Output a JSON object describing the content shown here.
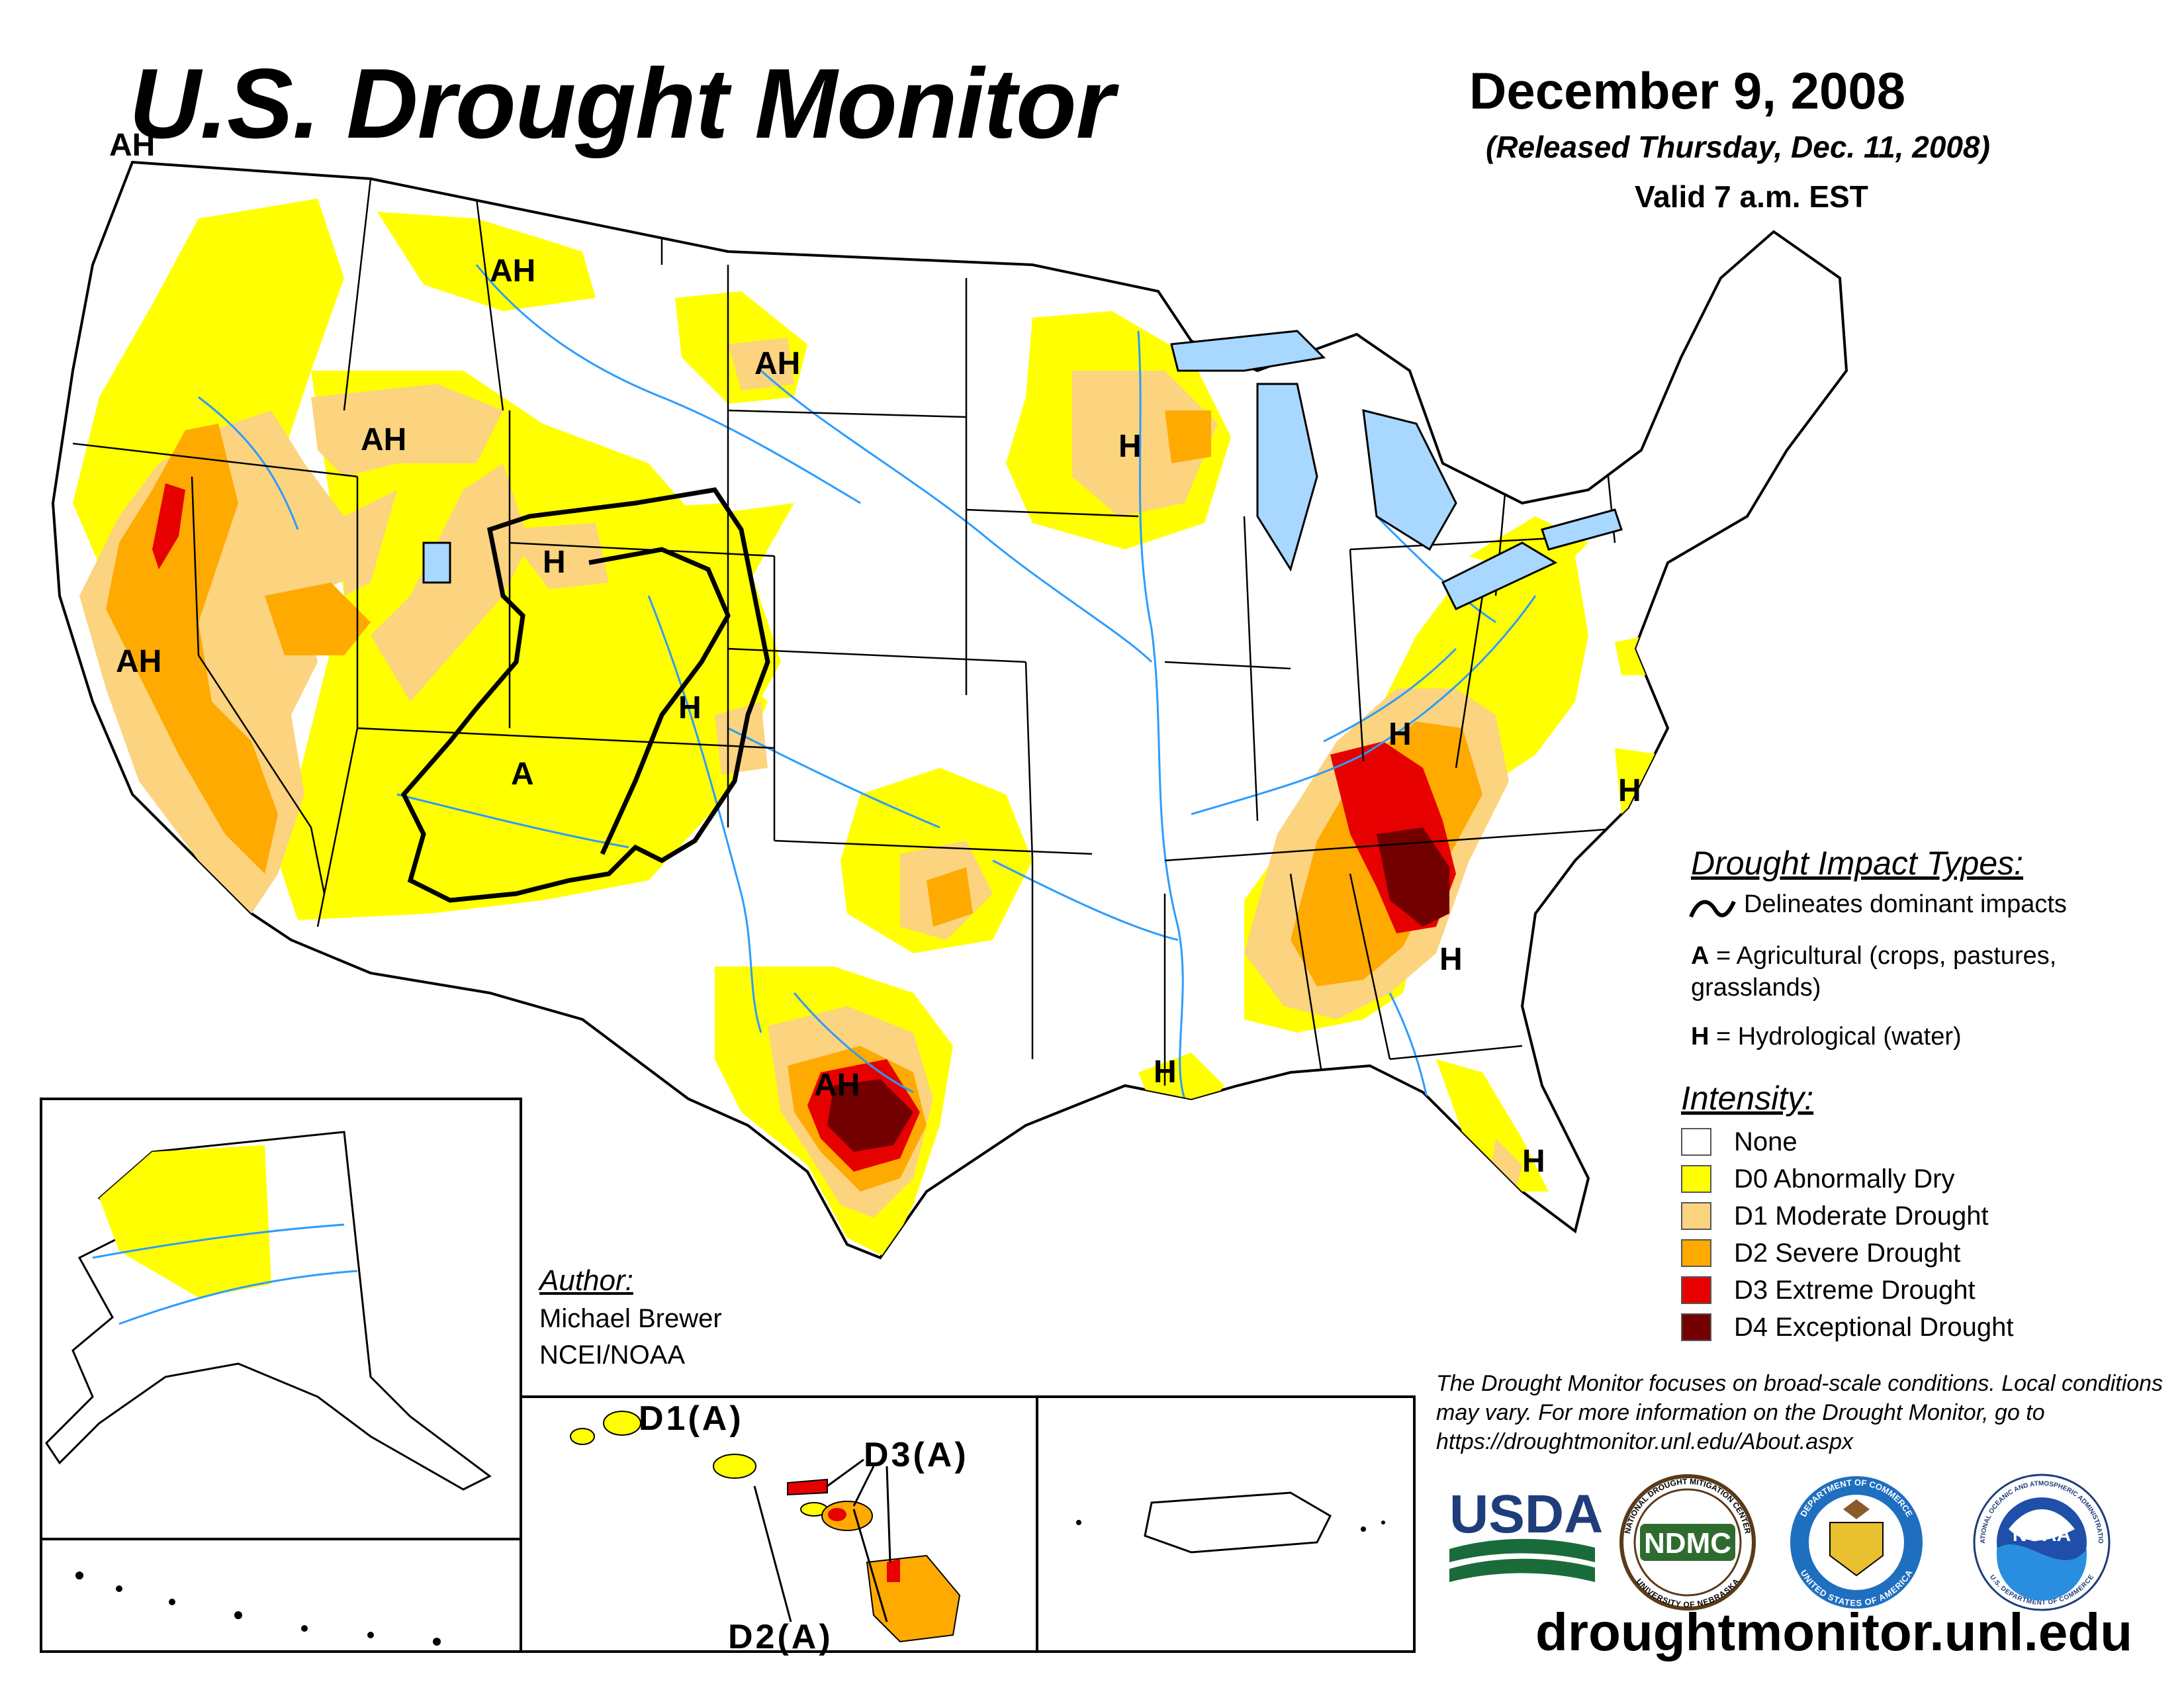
{
  "header": {
    "title": "U.S. Drought Monitor",
    "date": "December 9, 2008",
    "released": "(Released Thursday, Dec. 11, 2008)",
    "valid": "Valid 7 a.m. EST"
  },
  "colors": {
    "none": "#ffffff",
    "d0": "#ffff00",
    "d1": "#fcd37f",
    "d2": "#ffaa00",
    "d3": "#e60000",
    "d4": "#730000",
    "rivers": "#2c9cff",
    "lakes": "#a8d8ff",
    "outline": "#000000"
  },
  "map_labels": {
    "pacific_nw": "AH",
    "montana": "AH",
    "north_dakota": "AH",
    "idaho": "AH",
    "wisconsin": "H",
    "wyoming": "H",
    "california": "AH",
    "colorado": "H",
    "four_corners": "A",
    "kentucky": "H",
    "north_carolina": "H",
    "georgia": "H",
    "louisiana": "H",
    "florida": "H",
    "texas": "AH"
  },
  "hawaii_labels": {
    "d1": "D1(A)",
    "d3": "D3(A)",
    "d2": "D2(A)"
  },
  "impact_types": {
    "title": "Drought Impact Types:",
    "delineates": "Delineates dominant impacts",
    "a_key": "A",
    "a_text": " = Agricultural (crops, pastures, grasslands)",
    "h_key": "H",
    "h_text": " = Hydrological (water)"
  },
  "intensity": {
    "title": "Intensity:",
    "items": [
      {
        "label": "None",
        "color": "#ffffff"
      },
      {
        "label": "D0 Abnormally Dry",
        "color": "#ffff00"
      },
      {
        "label": "D1 Moderate Drought",
        "color": "#fcd37f"
      },
      {
        "label": "D2 Severe Drought",
        "color": "#ffaa00"
      },
      {
        "label": "D3 Extreme Drought",
        "color": "#e60000"
      },
      {
        "label": "D4 Exceptional Drought",
        "color": "#730000"
      }
    ]
  },
  "author": {
    "title": "Author:",
    "name": "Michael Brewer",
    "org": "NCEI/NOAA"
  },
  "disclaimer": "The Drought Monitor focuses on broad-scale conditions. Local conditions may vary. For more information on the Drought Monitor, go to https://droughtmonitor.unl.edu/About.aspx",
  "logos": {
    "usda": "USDA",
    "ndmc": "NDMC",
    "ndmc_ring_top": "NATIONAL DROUGHT MITIGATION CENTER",
    "ndmc_ring_bottom": "UNIVERSITY OF NEBRASKA",
    "commerce_ring_top": "DEPARTMENT OF COMMERCE",
    "commerce_ring_bottom": "UNITED STATES OF AMERICA",
    "noaa": "NOAA",
    "noaa_ring_top": "NATIONAL OCEANIC AND ATMOSPHERIC ADMINISTRATION",
    "noaa_ring_bottom": "U.S. DEPARTMENT OF COMMERCE"
  },
  "site_url": "droughtmonitor.unl.edu"
}
